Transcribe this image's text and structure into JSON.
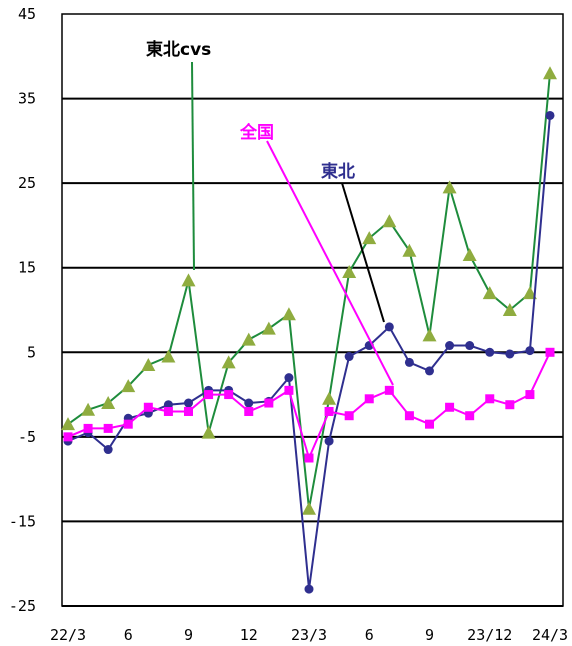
{
  "chart_data": {
    "type": "line",
    "categories": [
      "22/3",
      "4",
      "5",
      "6",
      "7",
      "8",
      "9",
      "10",
      "11",
      "12",
      "23/1",
      "2",
      "23/3",
      "4",
      "5",
      "6",
      "7",
      "8",
      "9",
      "10",
      "11",
      "23/12",
      "1",
      "2",
      "24/3"
    ],
    "x_tick_labels": [
      "22/3",
      "6",
      "9",
      "12",
      "23/3",
      "6",
      "9",
      "23/12",
      "24/3"
    ],
    "ylim": [
      -25,
      45
    ],
    "y_ticks": [
      45,
      35,
      25,
      15,
      5,
      -5,
      -15,
      -25
    ],
    "grid": true,
    "annotations": [
      {
        "text": "東北cvs",
        "series": "東北cvs",
        "color": "#000000"
      },
      {
        "text": "全国",
        "series": "全国",
        "color": "#ff00ff"
      },
      {
        "text": "東北",
        "series": "東北",
        "color": "#2f2f8f"
      }
    ],
    "series": [
      {
        "name": "東北cvs",
        "color": "#1e8c3c",
        "marker": "triangle",
        "marker_color": "#8fac3f",
        "values": [
          -3.5,
          -1.8,
          -1.0,
          1.0,
          3.5,
          4.5,
          13.5,
          -4.5,
          3.8,
          6.5,
          7.8,
          9.5,
          -13.5,
          -0.5,
          14.5,
          18.5,
          20.5,
          17.0,
          7.0,
          24.5,
          16.5,
          12.0,
          10.0,
          12.0,
          38.0
        ]
      },
      {
        "name": "東北",
        "color": "#2f2f8f",
        "marker": "circle",
        "marker_color": "#2f2f8f",
        "values": [
          -5.5,
          -4.5,
          -6.5,
          -2.8,
          -2.2,
          -1.2,
          -1.0,
          0.5,
          0.5,
          -1.0,
          -0.8,
          2.0,
          -23.0,
          -5.5,
          4.5,
          5.8,
          8.0,
          3.8,
          2.8,
          5.8,
          5.8,
          5.0,
          4.8,
          5.2,
          33.0
        ]
      },
      {
        "name": "全国",
        "color": "#ff00ff",
        "marker": "square",
        "marker_color": "#ff00ff",
        "values": [
          -5.0,
          -4.0,
          -4.0,
          -3.5,
          -1.5,
          -2.0,
          -2.0,
          0.0,
          0.0,
          -2.0,
          -1.0,
          0.5,
          -7.5,
          -2.0,
          -2.5,
          -0.5,
          0.5,
          -2.5,
          -3.5,
          -1.5,
          -2.5,
          -0.5,
          -1.2,
          0.0,
          5.0
        ]
      }
    ]
  }
}
